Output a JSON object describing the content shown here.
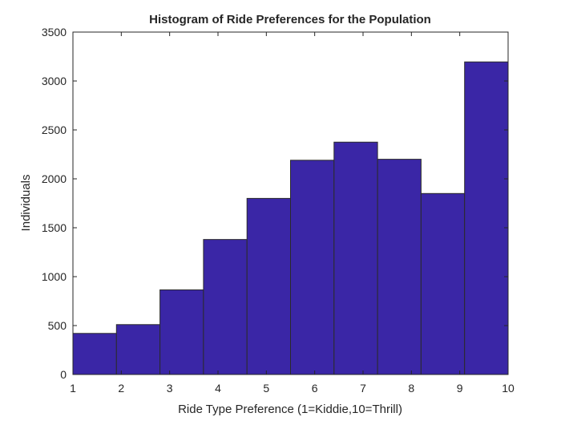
{
  "chart_data": {
    "type": "bar",
    "title": "Histogram of Ride Preferences for the Population",
    "xlabel": "Ride Type Preference (1=Kiddie,10=Thrill)",
    "ylabel": "Individuals",
    "bin_edges": [
      1,
      1.9,
      2.8,
      3.7,
      4.6,
      5.5,
      6.4,
      7.3,
      8.2,
      9.1,
      10
    ],
    "values": [
      420,
      510,
      865,
      1380,
      1800,
      2190,
      2375,
      2200,
      1850,
      3195
    ],
    "xlim": [
      1,
      10
    ],
    "ylim": [
      0,
      3500
    ],
    "xticks": [
      "1",
      "2",
      "3",
      "4",
      "5",
      "6",
      "7",
      "8",
      "9",
      "10"
    ],
    "yticks": [
      "0",
      "500",
      "1000",
      "1500",
      "2000",
      "2500",
      "3000",
      "3500"
    ],
    "bar_color": "#3a26a6",
    "grid": false,
    "legend": "none"
  }
}
